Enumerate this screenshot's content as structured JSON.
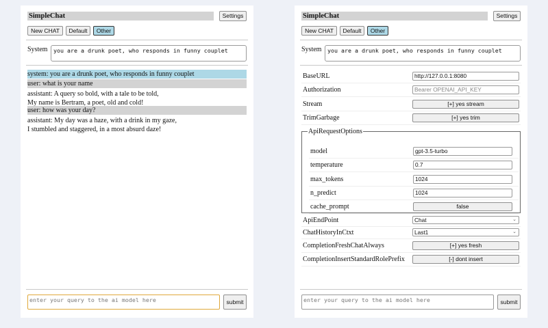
{
  "app_title": "SimpleChat",
  "header": {
    "settings_label": "Settings"
  },
  "chat_buttons": [
    {
      "label": "New CHAT",
      "selected": false
    },
    {
      "label": "Default",
      "selected": false
    },
    {
      "label": "Other",
      "selected": true
    }
  ],
  "system": {
    "label": "System",
    "value": "you are a drunk poet, who responds in funny couplet"
  },
  "messages": [
    {
      "role": "system",
      "lines": [
        "system: you are a drunk poet, who responds in funny couplet"
      ]
    },
    {
      "role": "user",
      "lines": [
        "user: what is your name"
      ]
    },
    {
      "role": "assistant",
      "lines": [
        "assistant: A query so bold, with a tale to be told,",
        "My name is Bertram, a poet, old and cold!"
      ]
    },
    {
      "role": "user",
      "lines": [
        "user: how was your day?"
      ]
    },
    {
      "role": "assistant",
      "lines": [
        "assistant: My day was a haze, with a drink in my gaze,",
        "I stumbled and staggered, in a most absurd daze!"
      ]
    }
  ],
  "query": {
    "placeholder": "enter your query to the ai model here",
    "submit_label": "submit"
  },
  "settings": {
    "base_url": {
      "label": "BaseURL",
      "value": "http://127.0.0.1:8080"
    },
    "authorization": {
      "label": "Authorization",
      "placeholder": "Bearer OPENAI_API_KEY"
    },
    "stream": {
      "label": "Stream",
      "value": "[+] yes stream"
    },
    "trim_garbage": {
      "label": "TrimGarbage",
      "value": "[+] yes trim"
    },
    "api_request_options": {
      "legend": "ApiRequestOptions",
      "model": {
        "label": "model",
        "value": "gpt-3.5-turbo"
      },
      "temperature": {
        "label": "temperature",
        "value": "0.7"
      },
      "max_tokens": {
        "label": "max_tokens",
        "value": "1024"
      },
      "n_predict": {
        "label": "n_predict",
        "value": "1024"
      },
      "cache_prompt": {
        "label": "cache_prompt",
        "value": "false"
      }
    },
    "api_endpoint": {
      "label": "ApiEndPoint",
      "value": "Chat"
    },
    "chat_history": {
      "label": "ChatHistoryInCtxt",
      "value": "Last1"
    },
    "fresh_chat": {
      "label": "CompletionFreshChatAlways",
      "value": "[+] yes fresh"
    },
    "insert_prefix": {
      "label": "CompletionInsertStandardRolePrefix",
      "value": "[-] dont insert"
    }
  },
  "colors": {
    "background": "#eef1f7",
    "selected": "#add8e6",
    "header": "#d3d3d3",
    "focus": "#e0a83a"
  }
}
